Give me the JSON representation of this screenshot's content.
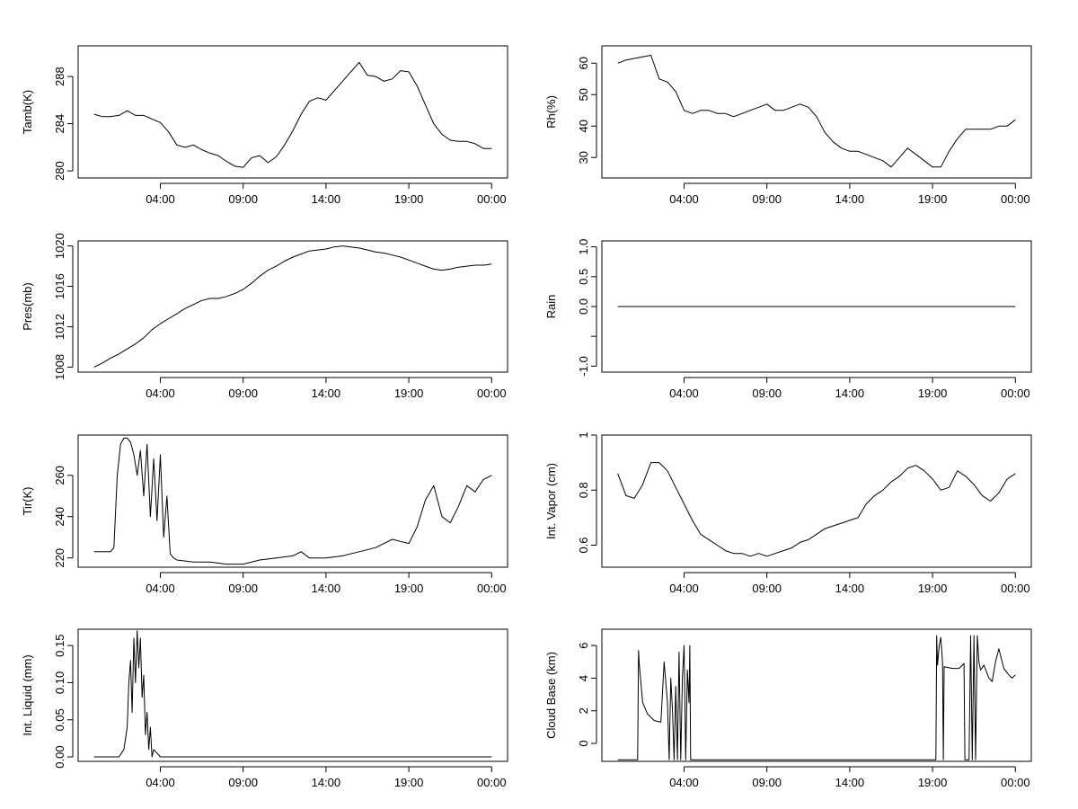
{
  "x_ticks": [
    "04:00",
    "09:00",
    "14:00",
    "19:00",
    "00:00"
  ],
  "x_tick_hours": [
    4,
    9,
    14,
    19,
    24
  ],
  "chart_data": [
    {
      "type": "line",
      "ylabel": "Tamb(K)",
      "xlabel": "",
      "yticks": [
        280,
        284,
        288
      ],
      "ylim": [
        279.4,
        290.6
      ],
      "xlim": [
        -0.96,
        24.96
      ],
      "series": [
        {
          "x": [
            0,
            0.5,
            1,
            1.5,
            2,
            2.5,
            3,
            3.5,
            4,
            4.5,
            5,
            5.5,
            6,
            6.5,
            7,
            7.5,
            8,
            8.5,
            9,
            9.5,
            10,
            10.5,
            11,
            11.5,
            12,
            12.5,
            13,
            13.5,
            14,
            14.5,
            15,
            15.5,
            16,
            16.5,
            17,
            17.5,
            18,
            18.5,
            19,
            19.5,
            20,
            20.5,
            21,
            21.5,
            22,
            22.5,
            23,
            23.5,
            24
          ],
          "y": [
            284.8,
            284.6,
            284.6,
            284.7,
            285.1,
            284.7,
            284.7,
            284.4,
            284.1,
            283.3,
            282.2,
            282.0,
            282.2,
            281.8,
            281.5,
            281.3,
            280.8,
            280.4,
            280.3,
            281.1,
            281.3,
            280.7,
            281.2,
            282.2,
            283.4,
            284.8,
            285.9,
            286.2,
            286.0,
            286.8,
            287.6,
            288.4,
            289.2,
            288.1,
            288.0,
            287.6,
            287.8,
            288.5,
            288.4,
            287.2,
            285.6,
            284.0,
            283.1,
            282.6,
            282.5,
            282.5,
            282.3,
            281.9,
            281.9
          ]
        }
      ]
    },
    {
      "type": "line",
      "ylabel": "Rh(%)",
      "xlabel": "",
      "yticks": [
        30,
        40,
        50,
        60
      ],
      "ylim": [
        23.5,
        65.5
      ],
      "xlim": [
        -0.96,
        24.96
      ],
      "series": [
        {
          "x": [
            0,
            0.5,
            1,
            1.5,
            2,
            2.5,
            3,
            3.5,
            4,
            4.5,
            5,
            5.5,
            6,
            6.5,
            7,
            7.5,
            8,
            8.5,
            9,
            9.5,
            10,
            10.5,
            11,
            11.5,
            12,
            12.5,
            13,
            13.5,
            14,
            14.5,
            15,
            15.5,
            16,
            16.5,
            17,
            17.5,
            18,
            18.5,
            19,
            19.5,
            20,
            20.5,
            21,
            21.5,
            22,
            22.5,
            23,
            23.5,
            24
          ],
          "y": [
            60,
            61,
            61.5,
            62,
            62.5,
            55,
            54,
            51,
            45,
            44,
            45,
            45,
            44,
            44,
            43,
            44,
            45,
            46,
            47,
            45,
            45,
            46,
            47,
            46,
            43,
            38,
            35,
            33,
            32,
            32,
            31,
            30,
            29,
            27,
            30,
            33,
            31,
            29,
            27,
            27,
            32,
            36,
            39,
            39,
            39,
            39,
            40,
            40,
            42
          ]
        }
      ]
    },
    {
      "type": "line",
      "ylabel": "Pres(mb)",
      "xlabel": "",
      "yticks": [
        1008,
        1012,
        1016,
        1020
      ],
      "ylim": [
        1007.5,
        1020.5
      ],
      "xlim": [
        -0.96,
        24.96
      ],
      "series": [
        {
          "x": [
            0,
            0.5,
            1,
            1.5,
            2,
            2.5,
            3,
            3.5,
            4,
            4.5,
            5,
            5.5,
            6,
            6.5,
            7,
            7.5,
            8,
            8.5,
            9,
            9.5,
            10,
            10.5,
            11,
            11.5,
            12,
            12.5,
            13,
            13.5,
            14,
            14.5,
            15,
            15.5,
            16,
            16.5,
            17,
            17.5,
            18,
            18.5,
            19,
            19.5,
            20,
            20.5,
            21,
            21.5,
            22,
            22.5,
            23,
            23.5,
            24
          ],
          "y": [
            1008.0,
            1008.4,
            1008.9,
            1009.3,
            1009.8,
            1010.3,
            1010.9,
            1011.7,
            1012.3,
            1012.8,
            1013.3,
            1013.8,
            1014.2,
            1014.6,
            1014.8,
            1014.8,
            1015.0,
            1015.3,
            1015.7,
            1016.3,
            1017.0,
            1017.6,
            1018.0,
            1018.5,
            1018.9,
            1019.2,
            1019.5,
            1019.6,
            1019.7,
            1019.9,
            1020.0,
            1019.9,
            1019.8,
            1019.6,
            1019.4,
            1019.3,
            1019.1,
            1018.9,
            1018.6,
            1018.3,
            1018.0,
            1017.7,
            1017.6,
            1017.7,
            1017.9,
            1018.0,
            1018.1,
            1018.1,
            1018.2
          ]
        }
      ]
    },
    {
      "type": "line",
      "ylabel": "Rain",
      "xlabel": "",
      "yticks": [
        -1.0,
        -0.5,
        0.0,
        0.5,
        1.0
      ],
      "ytick_labels": [
        "-1.0",
        "",
        "0.0",
        "0.5",
        "1.0"
      ],
      "ylim": [
        -1.1,
        1.1
      ],
      "xlim": [
        -0.96,
        24.96
      ],
      "series": [
        {
          "x": [
            0,
            24
          ],
          "y": [
            0,
            0
          ]
        }
      ]
    },
    {
      "type": "line",
      "ylabel": "Tir(K)",
      "xlabel": "",
      "yticks": [
        220,
        240,
        260
      ],
      "ylim": [
        215.5,
        279.5
      ],
      "xlim": [
        -0.96,
        24.96
      ],
      "series": [
        {
          "x": [
            0,
            0.5,
            1,
            1.2,
            1.4,
            1.6,
            1.8,
            2,
            2.2,
            2.4,
            2.6,
            2.8,
            3,
            3.2,
            3.4,
            3.6,
            3.8,
            4,
            4.2,
            4.4,
            4.6,
            4.8,
            5,
            6,
            7,
            8,
            9,
            10,
            11,
            12,
            12.5,
            13,
            14,
            15,
            16,
            17,
            18,
            18.5,
            19,
            19.5,
            20,
            20.5,
            21,
            21.5,
            22,
            22.5,
            23,
            23.5,
            24
          ],
          "y": [
            223,
            223,
            223,
            225,
            260,
            275,
            278,
            278,
            276,
            270,
            260,
            272,
            250,
            275,
            240,
            268,
            238,
            270,
            230,
            250,
            222,
            220,
            219,
            218,
            218,
            217,
            217,
            219,
            220,
            221,
            223,
            220,
            220,
            221,
            223,
            225,
            229,
            228,
            227,
            235,
            248,
            255,
            240,
            237,
            245,
            255,
            252,
            258,
            260
          ]
        }
      ]
    },
    {
      "type": "line",
      "ylabel": "Int. Vapor (cm)",
      "xlabel": "",
      "yticks": [
        0.6,
        0.8,
        1.0
      ],
      "ylim": [
        0.52,
        1.0
      ],
      "xlim": [
        -0.96,
        24.96
      ],
      "series": [
        {
          "x": [
            0,
            0.5,
            1,
            1.5,
            2,
            2.5,
            3,
            3.5,
            4,
            4.5,
            5,
            5.5,
            6,
            6.5,
            7,
            7.5,
            8,
            8.5,
            9,
            9.5,
            10,
            10.5,
            11,
            11.5,
            12,
            12.5,
            13,
            13.5,
            14,
            14.5,
            15,
            15.5,
            16,
            16.5,
            17,
            17.5,
            18,
            18.5,
            19,
            19.5,
            20,
            20.5,
            21,
            21.5,
            22,
            22.5,
            23,
            23.5,
            24
          ],
          "y": [
            0.86,
            0.78,
            0.77,
            0.82,
            0.9,
            0.9,
            0.87,
            0.81,
            0.75,
            0.69,
            0.64,
            0.62,
            0.6,
            0.58,
            0.57,
            0.57,
            0.56,
            0.57,
            0.56,
            0.57,
            0.58,
            0.59,
            0.61,
            0.62,
            0.64,
            0.66,
            0.67,
            0.68,
            0.69,
            0.7,
            0.75,
            0.78,
            0.8,
            0.83,
            0.85,
            0.88,
            0.89,
            0.87,
            0.84,
            0.8,
            0.81,
            0.87,
            0.85,
            0.82,
            0.78,
            0.76,
            0.79,
            0.84,
            0.86
          ]
        }
      ]
    },
    {
      "type": "line",
      "ylabel": "Int. Liquid (mm)",
      "xlabel": "",
      "yticks": [
        0.0,
        0.05,
        0.1,
        0.15
      ],
      "ytick_labels": [
        "0.00",
        "0.05",
        "0.10",
        "0.15"
      ],
      "ylim": [
        -0.006,
        0.172
      ],
      "xlim": [
        -0.96,
        24.96
      ],
      "series": [
        {
          "x": [
            0,
            1,
            1.5,
            1.8,
            2.0,
            2.1,
            2.2,
            2.3,
            2.4,
            2.5,
            2.6,
            2.7,
            2.8,
            2.9,
            3.0,
            3.1,
            3.2,
            3.3,
            3.4,
            3.5,
            3.6,
            3.8,
            4,
            24
          ],
          "y": [
            0,
            0,
            0,
            0.01,
            0.04,
            0.1,
            0.13,
            0.06,
            0.16,
            0.1,
            0.17,
            0.12,
            0.16,
            0.08,
            0.11,
            0.03,
            0.06,
            0.01,
            0.04,
            0.0,
            0.01,
            0.005,
            0,
            0
          ]
        }
      ]
    },
    {
      "type": "line",
      "ylabel": "Cloud Base (km)",
      "xlabel": "",
      "yticks": [
        0,
        2,
        4,
        6
      ],
      "ylim": [
        -1.1,
        7.0
      ],
      "xlim": [
        -0.96,
        24.96
      ],
      "series": [
        {
          "x": [
            0,
            1.2,
            1.25,
            1.3,
            1.5,
            1.8,
            2.2,
            2.6,
            2.8,
            3.0,
            3.1,
            3.2,
            3.3,
            3.4,
            3.5,
            3.6,
            3.7,
            3.8,
            3.9,
            4.0,
            4.1,
            4.2,
            4.3,
            4.35,
            4.4,
            19.2,
            19.25,
            19.3,
            19.4,
            19.5,
            19.6,
            19.65,
            19.7,
            20.2,
            20.6,
            20.9,
            20.95,
            21.2,
            21.3,
            21.4,
            21.5,
            21.6,
            21.7,
            21.8,
            21.9,
            22.1,
            22.4,
            22.6,
            22.8,
            23.0,
            23.3,
            23.6,
            23.8,
            24
          ],
          "y": [
            -1,
            -1,
            5.7,
            4.8,
            2.5,
            1.8,
            1.4,
            1.3,
            5.0,
            2.5,
            -1,
            4.0,
            2.0,
            -1,
            3.5,
            -1,
            5.6,
            -1,
            4.0,
            6.0,
            -1,
            4.5,
            2.5,
            6.0,
            -1,
            -1,
            6.6,
            4.8,
            6.0,
            6.5,
            5.0,
            -1,
            4.7,
            4.6,
            4.6,
            4.9,
            -1,
            -1,
            6.6,
            -1,
            6.6,
            -1,
            6.6,
            5.0,
            4.5,
            4.8,
            4.0,
            3.8,
            5.0,
            5.8,
            4.6,
            4.2,
            4.0,
            4.2
          ]
        }
      ]
    }
  ]
}
